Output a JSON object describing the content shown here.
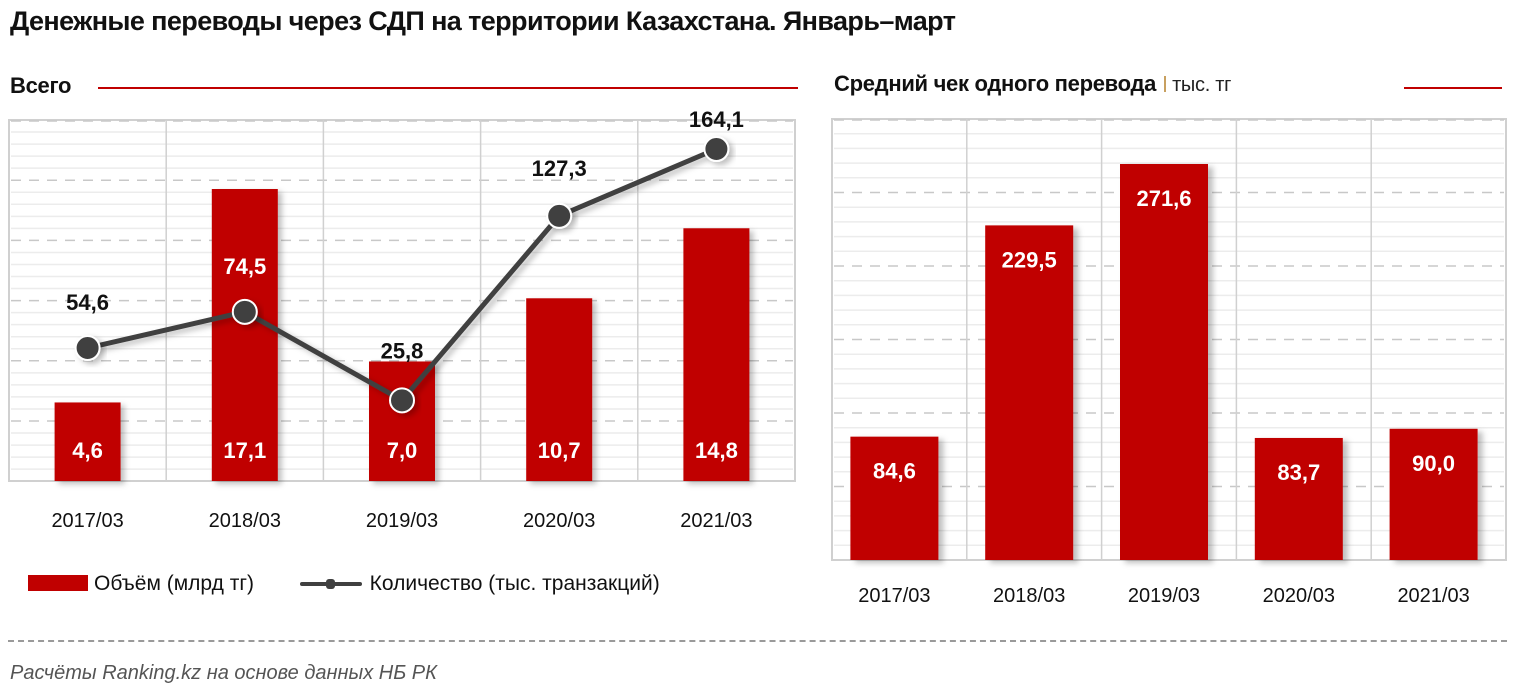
{
  "header": {
    "title": "Денежные переводы через СДП на территории Казахстана. Январь–март"
  },
  "left_panel": {
    "subtitle": "Всего",
    "legend": {
      "bar_label": "Объём (млрд тг)",
      "line_label": "Количество (тыс. транзакций)"
    }
  },
  "right_panel": {
    "subtitle": "Средний чек одного перевода",
    "unit": "тыс. тг"
  },
  "footer": {
    "source": "Расчёты Ranking.kz на основе данных  НБ РК"
  },
  "colors": {
    "bar": "#c00000",
    "line": "#404040",
    "accent_rule": "#c00000",
    "grid_major": "#c8c8c8",
    "grid_minor": "#ececec"
  },
  "chart_data": [
    {
      "type": "bar+line",
      "title": "Всего",
      "categories": [
        "2017/03",
        "2018/03",
        "2019/03",
        "2020/03",
        "2021/03"
      ],
      "series": [
        {
          "name": "Объём (млрд тг)",
          "type": "bar",
          "values": [
            4.6,
            17.1,
            7.0,
            10.7,
            14.8
          ],
          "labels": [
            "4,6",
            "17,1",
            "7,0",
            "10,7",
            "14,8"
          ],
          "color": "#c00000",
          "axis": "primary"
        },
        {
          "name": "Количество (тыс. транзакций)",
          "type": "line",
          "values": [
            54.6,
            74.5,
            25.8,
            127.3,
            164.1
          ],
          "labels": [
            "54,6",
            "74,5",
            "25,8",
            "127,3",
            "164,1"
          ],
          "color": "#404040",
          "axis": "secondary"
        }
      ],
      "xlabel": "",
      "ylabel": "",
      "grid": true,
      "legend_position": "bottom"
    },
    {
      "type": "bar",
      "title": "Средний чек одного перевода",
      "unit": "тыс. тг",
      "categories": [
        "2017/03",
        "2018/03",
        "2019/03",
        "2020/03",
        "2021/03"
      ],
      "values": [
        84.6,
        229.5,
        271.6,
        83.7,
        90.0
      ],
      "labels": [
        "84,6",
        "229,5",
        "271,6",
        "83,7",
        "90,0"
      ],
      "color": "#c00000",
      "xlabel": "",
      "ylabel": "",
      "grid": true
    }
  ]
}
